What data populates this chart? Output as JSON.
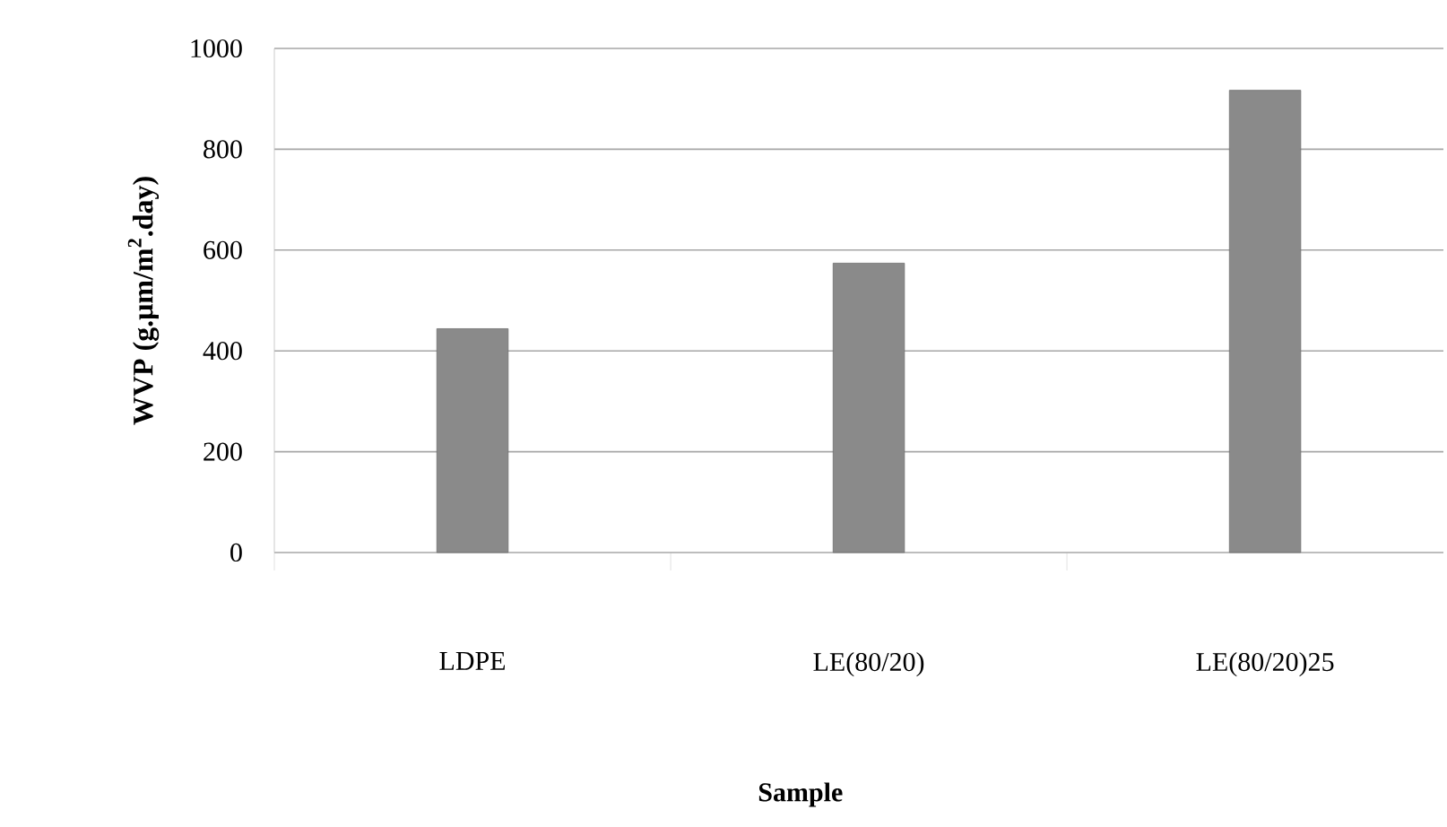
{
  "chart_data": {
    "type": "bar",
    "xlabel": "Sample",
    "ylabel": "WVP (g.μm/m$^{2}$.day)",
    "categories": [
      "LDPE",
      "LE(80/20)",
      "LE(80/20)25"
    ],
    "values": [
      444,
      574,
      917
    ],
    "color": "#8a8a8a",
    "ylim": [
      0,
      1000
    ],
    "yticks": [
      0,
      200,
      400,
      600,
      800,
      1000
    ],
    "grid": "y"
  }
}
